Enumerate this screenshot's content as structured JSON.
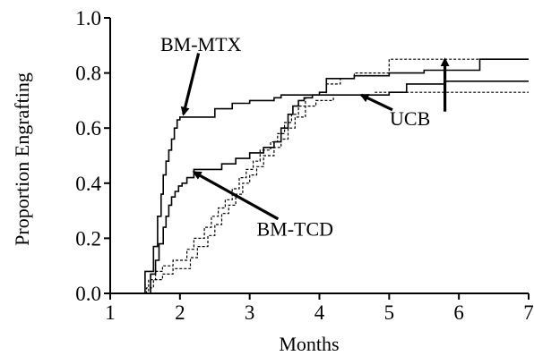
{
  "chart_data": {
    "type": "line",
    "xlabel": "Months",
    "ylabel": "Proportion Engrafting",
    "xlim": [
      1,
      7
    ],
    "ylim": [
      0,
      1.0
    ],
    "grid": false,
    "x_ticks": [
      1,
      2,
      3,
      4,
      5,
      6,
      7
    ],
    "x_tick_labels": [
      "1",
      "2",
      "3",
      "4",
      "5",
      "6",
      "7"
    ],
    "y_ticks": [
      0,
      0.2,
      0.4,
      0.6,
      0.8,
      1.0
    ],
    "y_tick_labels": [
      "0.0",
      "0.2",
      "0.4",
      "0.6",
      "0.8",
      "1.0"
    ],
    "series": [
      {
        "name": "BM-MTX",
        "style": "solid",
        "x": [
          1.0,
          1.37,
          1.5,
          1.62,
          1.68,
          1.73,
          1.76,
          1.8,
          1.84,
          1.88,
          1.92,
          1.96,
          2.0,
          2.04,
          2.1,
          2.15,
          2.5,
          2.75,
          3.0,
          3.35,
          3.45,
          4.1,
          4.5,
          5.0,
          5.25,
          5.8,
          7.0
        ],
        "y": [
          0.0,
          0.0,
          0.08,
          0.17,
          0.28,
          0.36,
          0.43,
          0.48,
          0.52,
          0.56,
          0.6,
          0.63,
          0.64,
          0.64,
          0.64,
          0.64,
          0.67,
          0.69,
          0.7,
          0.71,
          0.72,
          0.72,
          0.72,
          0.73,
          0.76,
          0.77,
          0.77
        ]
      },
      {
        "name": "BM-TCD",
        "style": "solid",
        "x": [
          1.0,
          1.5,
          1.58,
          1.65,
          1.7,
          1.76,
          1.8,
          1.84,
          1.88,
          1.93,
          1.98,
          2.03,
          2.1,
          2.2,
          2.6,
          2.8,
          3.0,
          3.2,
          3.35,
          3.45,
          3.55,
          3.62,
          3.7,
          3.78,
          3.9,
          4.0,
          4.1,
          4.5,
          5.0,
          5.5,
          6.3,
          7.0
        ],
        "y": [
          0.0,
          0.0,
          0.07,
          0.12,
          0.18,
          0.24,
          0.28,
          0.32,
          0.35,
          0.37,
          0.39,
          0.4,
          0.42,
          0.45,
          0.47,
          0.49,
          0.51,
          0.53,
          0.55,
          0.6,
          0.65,
          0.68,
          0.7,
          0.71,
          0.72,
          0.73,
          0.78,
          0.79,
          0.8,
          0.81,
          0.85,
          0.85
        ]
      },
      {
        "name": "UCB",
        "style": "dashed",
        "x": [
          1.0,
          1.45,
          1.55,
          1.65,
          1.75,
          1.9,
          2.1,
          2.2,
          2.35,
          2.45,
          2.55,
          2.65,
          2.75,
          2.85,
          2.95,
          3.05,
          3.15,
          3.3,
          3.4,
          3.5,
          3.6,
          3.7,
          3.8,
          3.9,
          4.1,
          4.3,
          4.5,
          5.0,
          7.0
        ],
        "y": [
          0.0,
          0.0,
          0.05,
          0.08,
          0.1,
          0.12,
          0.16,
          0.2,
          0.24,
          0.28,
          0.31,
          0.34,
          0.38,
          0.42,
          0.45,
          0.48,
          0.52,
          0.55,
          0.58,
          0.62,
          0.65,
          0.68,
          0.71,
          0.72,
          0.76,
          0.78,
          0.8,
          0.85,
          0.85
        ]
      },
      {
        "name": "UCB",
        "style": "dashed",
        "x": [
          1.0,
          1.4,
          1.52,
          1.62,
          1.75,
          1.9,
          2.15,
          2.25,
          2.4,
          2.5,
          2.6,
          2.7,
          2.8,
          2.9,
          3.0,
          3.1,
          3.2,
          3.35,
          3.45,
          3.55,
          3.65,
          3.8,
          3.95,
          4.2,
          4.8,
          5.3,
          7.0
        ],
        "y": [
          0.0,
          0.0,
          0.02,
          0.05,
          0.07,
          0.09,
          0.13,
          0.17,
          0.21,
          0.25,
          0.29,
          0.32,
          0.36,
          0.4,
          0.43,
          0.46,
          0.5,
          0.53,
          0.56,
          0.6,
          0.64,
          0.68,
          0.7,
          0.72,
          0.73,
          0.73,
          0.73
        ]
      }
    ],
    "annotations": [
      {
        "text": "BM-MTX",
        "x": 2.3,
        "y": 0.88,
        "arrow_to": [
          2.05,
          0.65
        ]
      },
      {
        "text": "BM-TCD",
        "x": 3.65,
        "y": 0.21,
        "arrow_to": [
          2.2,
          0.44
        ]
      },
      {
        "text": "UCB",
        "x": 5.3,
        "y": 0.61,
        "arrow_to": [
          4.6,
          0.72
        ]
      },
      {
        "text": "",
        "x": 5.8,
        "y": 0.66,
        "arrow_to": [
          5.8,
          0.85
        ]
      }
    ]
  }
}
